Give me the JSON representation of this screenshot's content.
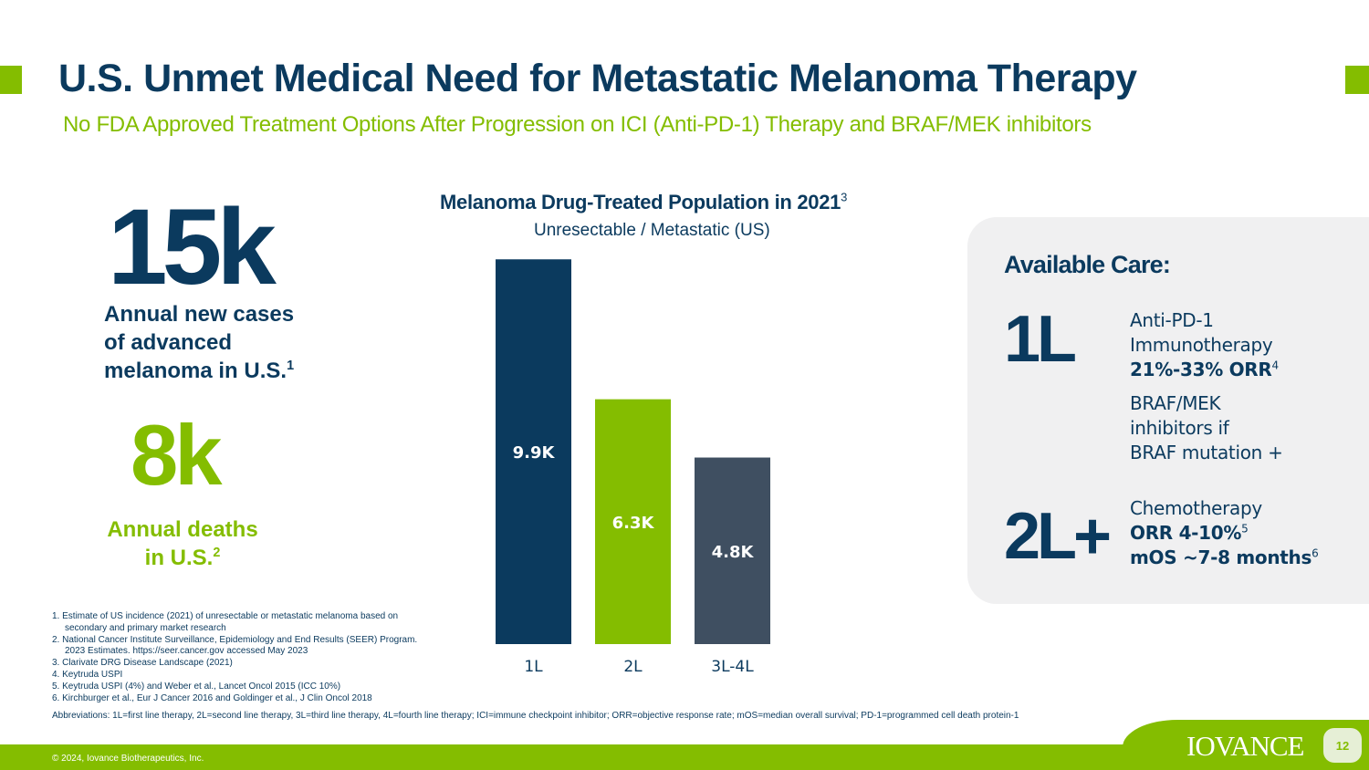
{
  "header": {
    "title": "U.S. Unmet Medical Need for Metastatic Melanoma Therapy",
    "subtitle": "No FDA Approved Treatment Options After Progression on ICI (Anti-PD-1) Therapy and BRAF/MEK inhibitors"
  },
  "stats": {
    "cases_value": "15k",
    "cases_line1": "Annual new cases",
    "cases_line2": "of advanced",
    "cases_line3": "melanoma in U.S.",
    "cases_ref": "1",
    "deaths_value": "8k",
    "deaths_line1": "Annual deaths",
    "deaths_line2": "in U.S.",
    "deaths_ref": "2"
  },
  "chart_data": {
    "type": "bar",
    "title": "Melanoma Drug-Treated Population in 2021",
    "title_ref": "3",
    "subtitle": "Unresectable / Metastatic (US)",
    "categories": [
      "1L",
      "2L",
      "3L-4L"
    ],
    "values": [
      9900,
      6300,
      4800
    ],
    "data_labels": [
      "9.9K",
      "6.3K",
      "4.8K"
    ],
    "colors": [
      "#0b3a5e",
      "#84bd00",
      "#3f4f61"
    ],
    "ylim": [
      0,
      10000
    ],
    "grid": false,
    "xlabel": "",
    "ylabel": ""
  },
  "care": {
    "title": "Available Care:",
    "first_line_label": "1L",
    "first_line_item1": "Anti-PD-1",
    "first_line_item2": "Immunotherapy",
    "first_line_orr": "21%-33% ORR",
    "first_line_orr_ref": "4",
    "braf_line1": "BRAF/MEK",
    "braf_line2": "inhibitors if",
    "braf_line3": "BRAF mutation +",
    "second_line_label": "2L+",
    "second_line_item1": "Chemotherapy",
    "second_line_orr": "ORR 4-10%",
    "second_line_orr_ref": "5",
    "second_line_mos": "mOS ~7-8 months",
    "second_line_mos_ref": "6"
  },
  "footnotes": [
    "1.  Estimate of US incidence (2021) of unresectable or metastatic melanoma based on secondary and primary market research",
    "2.  National Cancer Institute Surveillance, Epidemiology and End Results (SEER) Program. 2023 Estimates. https://seer.cancer.gov accessed May 2023",
    "3.  Clarivate DRG Disease Landscape (2021)",
    "4.  Keytruda USPI",
    "5.  Keytruda USPI (4%) and Weber et al., Lancet Oncol 2015 (ICC 10%)",
    "6.  Kirchburger et al., Eur J Cancer 2016 and Goldinger et al., J Clin Oncol 2018"
  ],
  "abbreviations": "Abbreviations: 1L=first line therapy, 2L=second line therapy, 3L=third line therapy, 4L=fourth line therapy; ICI=immune checkpoint inhibitor; ORR=objective response rate; mOS=median overall survival; PD-1=programmed cell death protein-1",
  "footer": {
    "copyright": "© 2024, Iovance Biotherapeutics, Inc.",
    "logo_text": "IOVANCE",
    "page_number": "12"
  }
}
